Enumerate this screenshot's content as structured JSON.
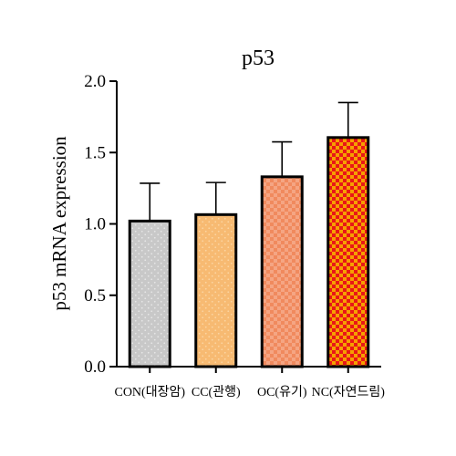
{
  "chart_data": {
    "type": "bar",
    "title": "p53",
    "xlabel": "",
    "ylabel": "p53 mRNA expression",
    "categories": [
      "CON(대장암)",
      "CC(관행)",
      "OC(유기)",
      "NC(자연드림)"
    ],
    "values": [
      1.02,
      1.065,
      1.33,
      1.605
    ],
    "errors": [
      0.265,
      0.225,
      0.245,
      0.245
    ],
    "ylim": [
      0,
      2.0
    ],
    "yticks": [
      "0.0",
      "0.5",
      "1.0",
      "1.5",
      "2.0"
    ],
    "grid": false,
    "legend": "none",
    "fills": [
      {
        "base": "#c8c8c8",
        "pattern": "dots",
        "accent": "#e6e6e6"
      },
      {
        "base": "#f7ba72",
        "pattern": "dots",
        "accent": "#fbd5a2"
      },
      {
        "base": "#f08a5e",
        "pattern": "checker",
        "accent": "#f5a583"
      },
      {
        "base": "#e91717",
        "pattern": "checker",
        "accent": "#f6a000"
      }
    ]
  }
}
